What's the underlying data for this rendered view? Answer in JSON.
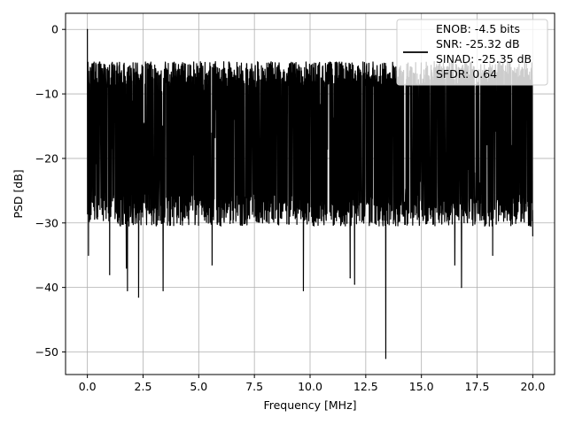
{
  "chart_data": {
    "type": "line",
    "title": "",
    "xlabel": "Frequency [MHz]",
    "ylabel": "PSD [dB]",
    "xlim": [
      -0.98,
      20.98
    ],
    "ylim": [
      -53.5,
      2.5
    ],
    "xticks": [
      0.0,
      2.5,
      5.0,
      7.5,
      10.0,
      12.5,
      15.0,
      17.5,
      20.0
    ],
    "xtick_labels": [
      "0.0",
      "2.5",
      "5.0",
      "7.5",
      "10.0",
      "12.5",
      "15.0",
      "17.5",
      "20.0"
    ],
    "yticks": [
      0,
      -10,
      -20,
      -30,
      -40,
      -50
    ],
    "ytick_labels": [
      "0",
      "−10",
      "−20",
      "−30",
      "−40",
      "−50"
    ],
    "grid": true,
    "legend_position": "top-right",
    "legend_lines": [
      "ENOB: -4.5 bits",
      "SNR: -25.32 dB",
      "SINAD: -25.35 dB",
      "SFDR: 0.64"
    ],
    "series": [
      {
        "color": "#000000",
        "x_range": [
          0,
          20
        ],
        "noise_band": [
          -28,
          -7
        ],
        "points": [
          {
            "x": 0.0,
            "y": 0.0
          },
          {
            "x": 0.05,
            "y": -35.0
          },
          {
            "x": 0.1,
            "y": -10.0
          },
          {
            "x": 1.0,
            "y": -38.0
          },
          {
            "x": 1.75,
            "y": -37.0
          },
          {
            "x": 1.8,
            "y": -40.5
          },
          {
            "x": 2.3,
            "y": -41.5
          },
          {
            "x": 3.4,
            "y": -40.5
          },
          {
            "x": 5.6,
            "y": -36.5
          },
          {
            "x": 9.7,
            "y": -40.5
          },
          {
            "x": 11.8,
            "y": -38.5
          },
          {
            "x": 12.0,
            "y": -39.5
          },
          {
            "x": 13.4,
            "y": -51.0
          },
          {
            "x": 16.5,
            "y": -36.5
          },
          {
            "x": 16.8,
            "y": -40.0
          },
          {
            "x": 18.2,
            "y": -35.0
          },
          {
            "x": 20.0,
            "y": -32.0
          }
        ]
      }
    ]
  }
}
